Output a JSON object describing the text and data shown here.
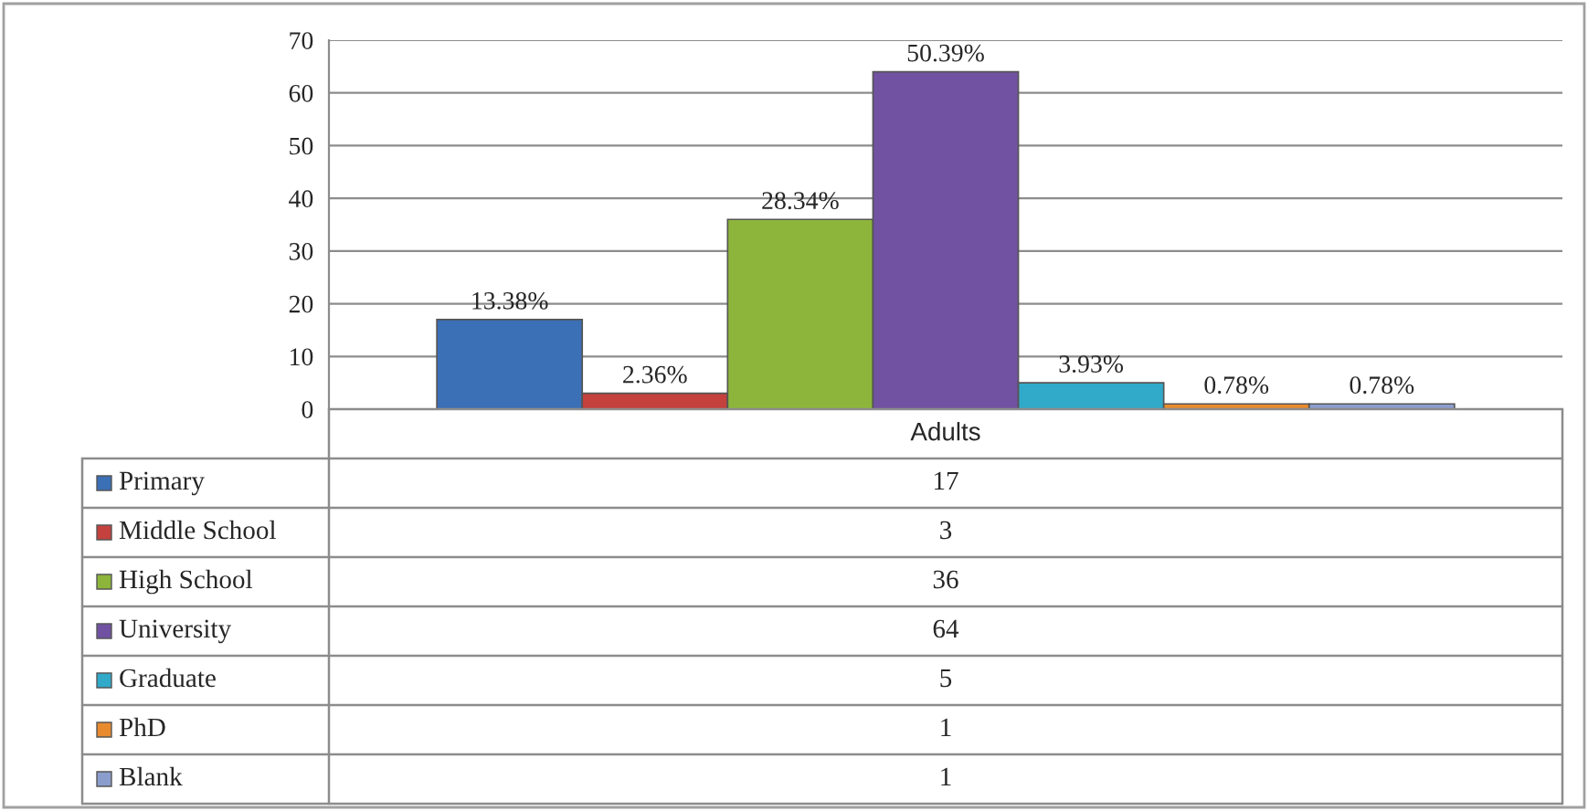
{
  "chart_data": {
    "type": "bar",
    "categories": [
      "Adults"
    ],
    "series": [
      {
        "name": "Primary",
        "color": "#3b6fb6",
        "values": [
          17
        ]
      },
      {
        "name": "Middle School",
        "color": "#c4413d",
        "values": [
          3
        ]
      },
      {
        "name": "High School",
        "color": "#8db53b",
        "values": [
          36
        ]
      },
      {
        "name": "University",
        "color": "#7152a2",
        "values": [
          64
        ]
      },
      {
        "name": "Graduate",
        "color": "#31a9c9",
        "values": [
          5
        ]
      },
      {
        "name": "PhD",
        "color": "#e88b2f",
        "values": [
          1
        ]
      },
      {
        "name": "Blank",
        "color": "#8b9dcc",
        "values": [
          1
        ]
      }
    ],
    "annotations": [
      "13.38%",
      "2.36%",
      "28.34%",
      "50.39%",
      "3.93%",
      "0.78%",
      "0.78%",
      "17",
      "3",
      "36",
      "64",
      "5",
      "1",
      "1"
    ],
    "ylim": [
      0,
      70
    ],
    "yticks": [
      0,
      10,
      20,
      30,
      40,
      50,
      60,
      70
    ],
    "grid": "y",
    "legend": "bottom"
  }
}
